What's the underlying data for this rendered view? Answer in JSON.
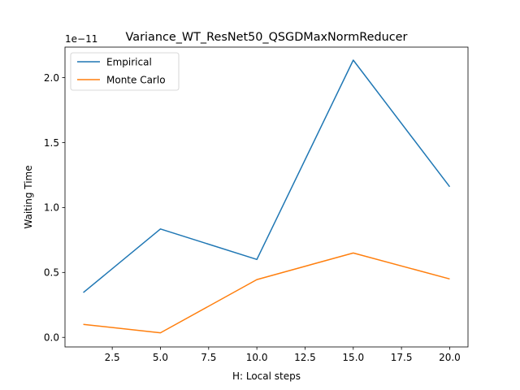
{
  "chart_data": {
    "type": "line",
    "title": "Variance_WT_ResNet50_QSGDMaxNormReducer",
    "xlabel": "H: Local steps",
    "ylabel": "Waiting Time",
    "y_offset_label": "1e−11",
    "x": [
      1,
      5,
      10,
      15,
      20
    ],
    "xlim": [
      0.05,
      20.95
    ],
    "ylim": [
      -0.0736,
      2.2352
    ],
    "xticks": [
      2.5,
      5.0,
      7.5,
      10.0,
      12.5,
      15.0,
      17.5,
      20.0
    ],
    "xtick_labels": [
      "2.5",
      "5.0",
      "7.5",
      "10.0",
      "12.5",
      "15.0",
      "17.5",
      "20.0"
    ],
    "yticks": [
      0.0,
      0.5,
      1.0,
      1.5,
      2.0
    ],
    "ytick_labels": [
      "0.0",
      "0.5",
      "1.0",
      "1.5",
      "2.0"
    ],
    "grid": false,
    "legend_position": "top-left",
    "series": [
      {
        "name": "Empirical",
        "color": "#1f77b4",
        "values": [
          0.345,
          0.835,
          0.6,
          2.135,
          1.16
        ]
      },
      {
        "name": "Monte Carlo",
        "color": "#ff7f0e",
        "values": [
          0.1,
          0.035,
          0.445,
          0.65,
          0.45
        ]
      }
    ]
  }
}
